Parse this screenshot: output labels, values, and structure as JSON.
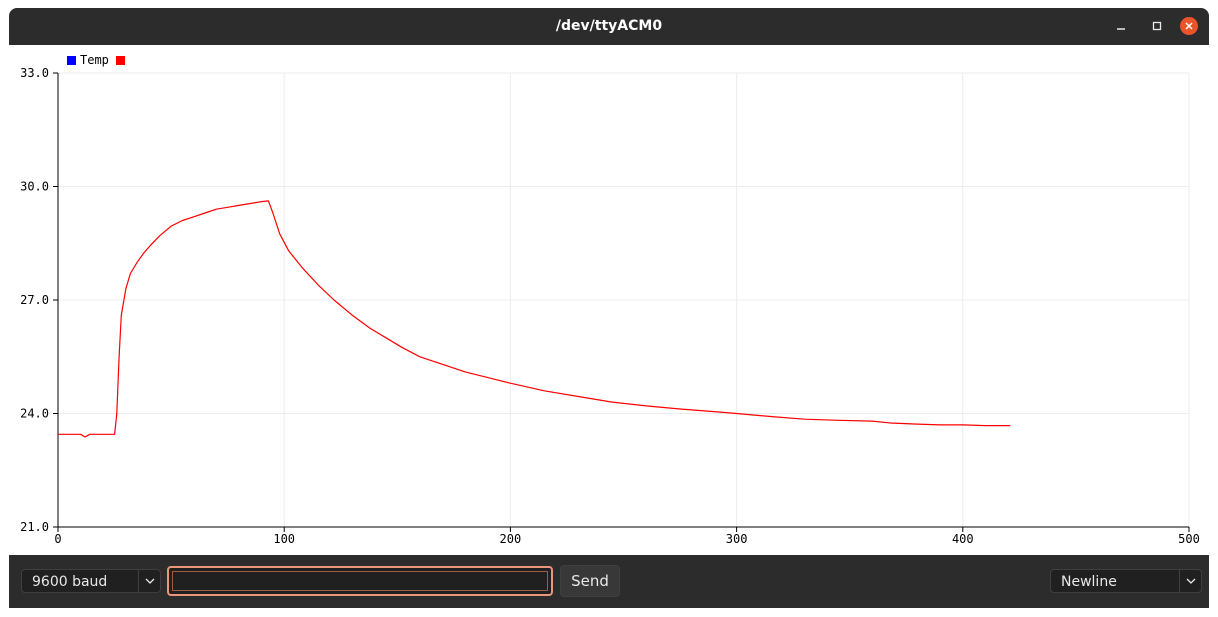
{
  "window": {
    "title": "/dev/ttyACM0"
  },
  "titlebar_icons": [
    "minimize-icon",
    "maximize-icon",
    "close-icon"
  ],
  "colors": {
    "titlebar": "#2c2c2c",
    "close": "#e9542a",
    "series": "#ff0000",
    "legend_blue": "#0000ff",
    "input_focus": "#e9967a"
  },
  "chart_data": {
    "type": "line",
    "legend": [
      "Temp"
    ],
    "legend_colors": [
      "#0000ff",
      "#ff0000"
    ],
    "xlim": [
      0,
      500
    ],
    "ylim": [
      21.0,
      33.0
    ],
    "x_ticks": [
      "0",
      "100",
      "200",
      "300",
      "400",
      "500"
    ],
    "y_ticks": [
      "21.0",
      "24.0",
      "27.0",
      "30.0",
      "33.0"
    ],
    "grid": true,
    "series": [
      {
        "color": "#ff0000",
        "points": [
          [
            0,
            23.45
          ],
          [
            10,
            23.45
          ],
          [
            12,
            23.38
          ],
          [
            14,
            23.45
          ],
          [
            24,
            23.45
          ],
          [
            25,
            23.45
          ],
          [
            26,
            24.0
          ],
          [
            27,
            25.5
          ],
          [
            28,
            26.6
          ],
          [
            30,
            27.3
          ],
          [
            32,
            27.7
          ],
          [
            35,
            28.0
          ],
          [
            38,
            28.25
          ],
          [
            41,
            28.45
          ],
          [
            45,
            28.7
          ],
          [
            50,
            28.95
          ],
          [
            55,
            29.1
          ],
          [
            60,
            29.2
          ],
          [
            65,
            29.3
          ],
          [
            70,
            29.4
          ],
          [
            75,
            29.45
          ],
          [
            80,
            29.5
          ],
          [
            85,
            29.55
          ],
          [
            90,
            29.6
          ],
          [
            93,
            29.62
          ],
          [
            95,
            29.3
          ],
          [
            98,
            28.75
          ],
          [
            102,
            28.3
          ],
          [
            108,
            27.85
          ],
          [
            115,
            27.4
          ],
          [
            122,
            27.0
          ],
          [
            130,
            26.6
          ],
          [
            138,
            26.25
          ],
          [
            145,
            26.0
          ],
          [
            152,
            25.75
          ],
          [
            160,
            25.5
          ],
          [
            170,
            25.3
          ],
          [
            180,
            25.1
          ],
          [
            190,
            24.95
          ],
          [
            200,
            24.8
          ],
          [
            215,
            24.6
          ],
          [
            230,
            24.45
          ],
          [
            245,
            24.3
          ],
          [
            260,
            24.2
          ],
          [
            275,
            24.12
          ],
          [
            290,
            24.05
          ],
          [
            300,
            24.0
          ],
          [
            315,
            23.92
          ],
          [
            330,
            23.85
          ],
          [
            345,
            23.82
          ],
          [
            360,
            23.8
          ],
          [
            368,
            23.75
          ],
          [
            380,
            23.72
          ],
          [
            390,
            23.7
          ],
          [
            400,
            23.7
          ],
          [
            410,
            23.68
          ],
          [
            421,
            23.68
          ]
        ]
      }
    ]
  },
  "bottom": {
    "baud": "9600 baud",
    "input_value": "",
    "send": "Send",
    "newline": "Newline"
  }
}
